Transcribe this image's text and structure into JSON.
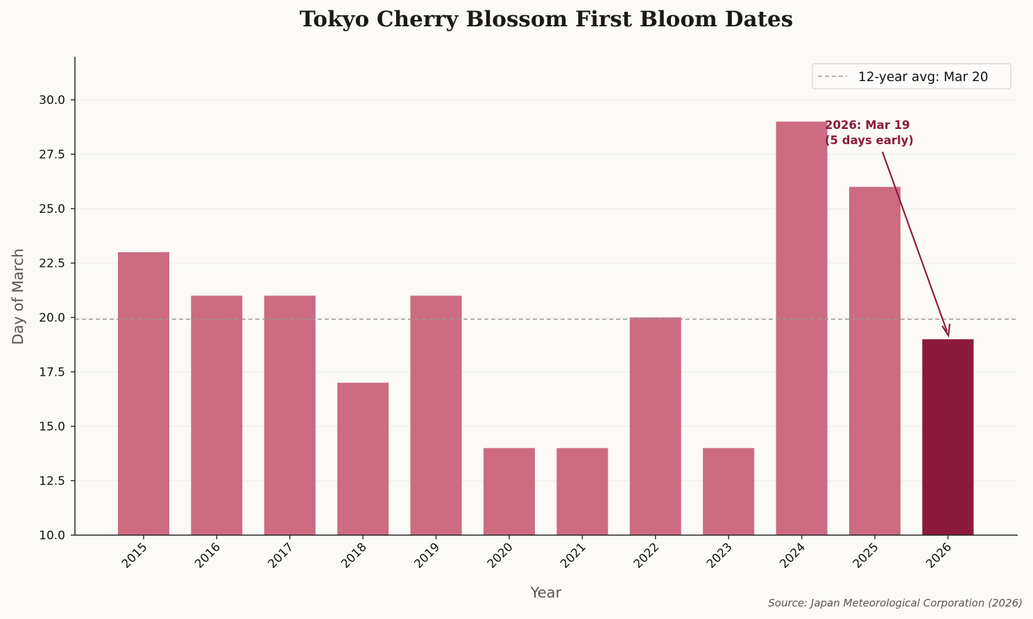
{
  "title": "Tokyo Cherry Blossom First Bloom Dates",
  "xlabel": "Year",
  "ylabel": "Day of March",
  "source": "Source: Japan Meteorological Corporation (2026)",
  "legend": {
    "label": "12-year avg: Mar 20"
  },
  "annotation": {
    "line1": "2026: Mar 19",
    "line2": "(5 days early)"
  },
  "colors": {
    "bar": "#cc6b82",
    "highlight": "#8b1a3c",
    "avg_line": "#999590",
    "background": "#fbfaf7",
    "grid": "#f1efea"
  },
  "chart_data": {
    "type": "bar",
    "title": "Tokyo Cherry Blossom First Bloom Dates",
    "xlabel": "Year",
    "ylabel": "Day of March",
    "categories": [
      "2015",
      "2016",
      "2017",
      "2018",
      "2019",
      "2020",
      "2021",
      "2022",
      "2023",
      "2024",
      "2025",
      "2026"
    ],
    "values": [
      23,
      21,
      21,
      17,
      21,
      14,
      14,
      20,
      14,
      29,
      26,
      19
    ],
    "highlight_index": 11,
    "average_line": {
      "value": 19.92,
      "label": "12-year avg: Mar 20",
      "style": "dashed"
    },
    "ylim": [
      10,
      32
    ],
    "yticks": [
      "10.0",
      "12.5",
      "15.0",
      "17.5",
      "20.0",
      "22.5",
      "25.0",
      "27.5",
      "30.0"
    ],
    "grid": "y",
    "legend_position": "upper right",
    "annotations": [
      {
        "text": "2026: Mar 19\n(5 days early)",
        "target": "2026",
        "arrow": true
      }
    ]
  }
}
